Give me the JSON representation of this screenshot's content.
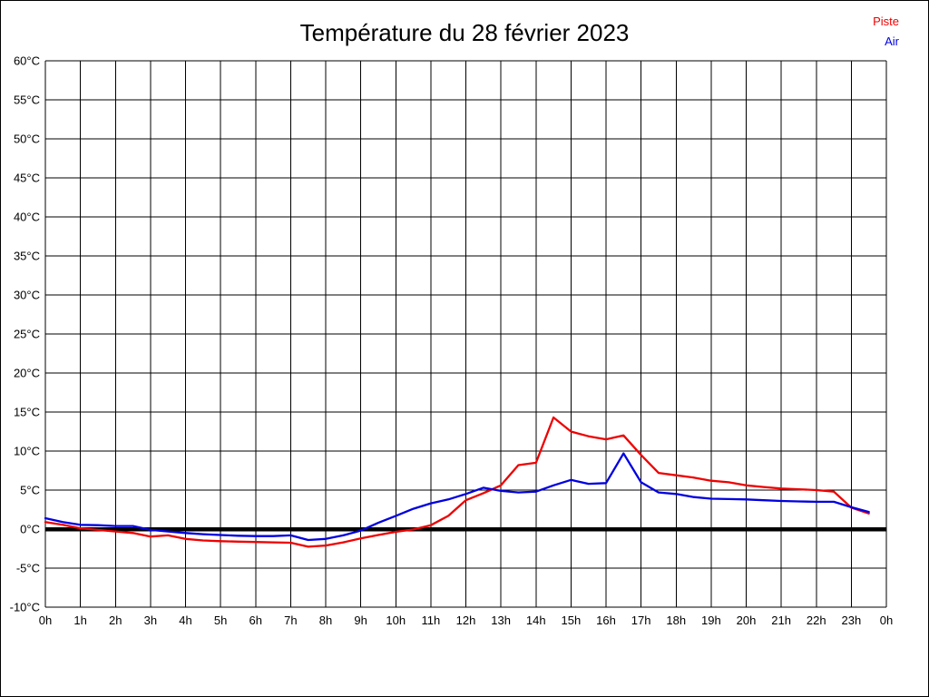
{
  "title": "Température du 28 février 2023",
  "legend": {
    "items": [
      {
        "label": "Piste",
        "color": "#ee0000"
      },
      {
        "label": "Air",
        "color": "#0000e0"
      }
    ],
    "position": "top-right"
  },
  "chart_data": {
    "type": "line",
    "title": "Température du 28 février 2023",
    "xlabel": "",
    "ylabel": "",
    "xlim_hours": [
      0,
      24
    ],
    "ylim": [
      -10,
      60
    ],
    "grid": true,
    "x_gridline_step_hours": 1,
    "y_gridline_step": 5,
    "zero_line": true,
    "x_tick_labels": [
      "0h",
      "1h",
      "2h",
      "3h",
      "4h",
      "5h",
      "6h",
      "7h",
      "8h",
      "9h",
      "10h",
      "11h",
      "12h",
      "13h",
      "14h",
      "15h",
      "16h",
      "17h",
      "18h",
      "19h",
      "20h",
      "21h",
      "22h",
      "23h",
      "0h"
    ],
    "y_tick_labels": [
      "60°C",
      "55°C",
      "50°C",
      "45°C",
      "40°C",
      "35°C",
      "30°C",
      "25°C",
      "20°C",
      "15°C",
      "10°C",
      "5°C",
      "0°C",
      "-5°C",
      "-10°C"
    ],
    "x": [
      0,
      0.5,
      1,
      1.5,
      2,
      2.5,
      3,
      3.5,
      4,
      4.5,
      5,
      5.5,
      6,
      6.5,
      7,
      7.5,
      8,
      8.5,
      9,
      9.5,
      10,
      10.5,
      11,
      11.5,
      12,
      12.5,
      13,
      13.5,
      14,
      14.5,
      15,
      15.5,
      16,
      16.5,
      17,
      17.5,
      18,
      18.5,
      19,
      19.5,
      20,
      20.5,
      21,
      21.5,
      22,
      22.5,
      23,
      23.5
    ],
    "series": [
      {
        "name": "Piste",
        "color": "#ee0000",
        "values": [
          0.9,
          0.55,
          0.1,
          -0.1,
          -0.3,
          -0.5,
          -0.95,
          -0.8,
          -1.25,
          -1.45,
          -1.55,
          -1.6,
          -1.65,
          -1.7,
          -1.75,
          -2.25,
          -2.1,
          -1.7,
          -1.2,
          -0.75,
          -0.35,
          -0.05,
          0.5,
          1.7,
          3.7,
          4.6,
          5.6,
          8.2,
          8.5,
          14.3,
          12.5,
          11.9,
          11.5,
          12.0,
          9.5,
          7.2,
          6.9,
          6.6,
          6.2,
          6.0,
          5.6,
          5.4,
          5.2,
          5.1,
          5.0,
          4.8,
          2.75,
          2.0
        ]
      },
      {
        "name": "Air",
        "color": "#0000e0",
        "values": [
          1.4,
          0.9,
          0.55,
          0.5,
          0.4,
          0.4,
          -0.1,
          -0.3,
          -0.5,
          -0.65,
          -0.75,
          -0.85,
          -0.9,
          -0.9,
          -0.8,
          -1.4,
          -1.25,
          -0.8,
          -0.2,
          0.8,
          1.7,
          2.6,
          3.3,
          3.8,
          4.5,
          5.3,
          4.9,
          4.7,
          4.8,
          5.6,
          6.3,
          5.8,
          5.9,
          9.7,
          6.0,
          4.7,
          4.5,
          4.1,
          3.9,
          3.85,
          3.8,
          3.7,
          3.6,
          3.55,
          3.5,
          3.5,
          2.8,
          2.2
        ]
      }
    ]
  }
}
